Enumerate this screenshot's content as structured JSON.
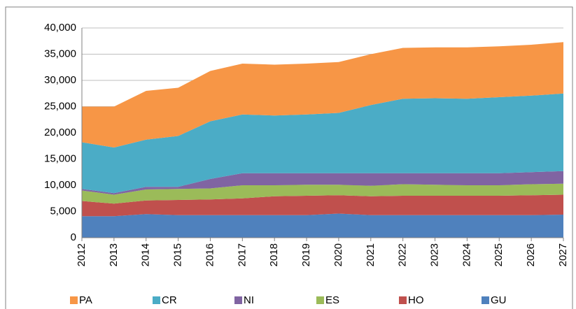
{
  "chart_data": {
    "type": "stacked-area",
    "categories": [
      "2012",
      "2013",
      "2014",
      "2015",
      "2016",
      "2017",
      "2018",
      "2019",
      "2020",
      "2021",
      "2022",
      "2023",
      "2024",
      "2025",
      "2026",
      "2027"
    ],
    "series": [
      {
        "name": "GU",
        "color": "#4f81bd",
        "values": [
          4100,
          4100,
          4500,
          4300,
          4300,
          4300,
          4300,
          4300,
          4600,
          4300,
          4300,
          4300,
          4300,
          4300,
          4300,
          4400
        ]
      },
      {
        "name": "HO",
        "color": "#c0504d",
        "values": [
          2900,
          2400,
          2600,
          2900,
          3000,
          3200,
          3600,
          3700,
          3500,
          3600,
          3700,
          3700,
          3700,
          3700,
          3800,
          3800
        ]
      },
      {
        "name": "ES",
        "color": "#9bbb59",
        "values": [
          2000,
          1700,
          2100,
          2100,
          2100,
          2500,
          2100,
          2100,
          2000,
          2000,
          2200,
          2100,
          2000,
          2000,
          2100,
          2100
        ]
      },
      {
        "name": "NI",
        "color": "#8064a2",
        "values": [
          300,
          300,
          500,
          400,
          1800,
          2300,
          2300,
          2200,
          2200,
          2400,
          2100,
          2200,
          2300,
          2300,
          2300,
          2400
        ]
      },
      {
        "name": "CR",
        "color": "#4bacc6",
        "values": [
          8900,
          8700,
          9000,
          9700,
          11000,
          11200,
          11000,
          11200,
          11500,
          13000,
          14200,
          14300,
          14200,
          14500,
          14600,
          14800
        ]
      },
      {
        "name": "PA",
        "color": "#f79646",
        "values": [
          6800,
          7800,
          9300,
          9200,
          9600,
          9700,
          9700,
          9700,
          9700,
          9700,
          9700,
          9700,
          9800,
          9700,
          9700,
          9800
        ]
      }
    ],
    "legend_order": [
      "PA",
      "CR",
      "NI",
      "ES",
      "HO",
      "GU"
    ],
    "ylim": [
      0,
      40000
    ],
    "yticks": [
      0,
      {
        "value": 5000,
        "label": "5,000"
      },
      {
        "value": 10000,
        "label": "10,000"
      },
      {
        "value": 15000,
        "label": "15,000"
      },
      {
        "value": 20000,
        "label": "20,000"
      },
      {
        "value": 25000,
        "label": "25,000"
      },
      {
        "value": 30000,
        "label": "30,000"
      },
      {
        "value": 35000,
        "label": "35,000"
      },
      {
        "value": 40000,
        "label": "40,000"
      }
    ],
    "grid": true
  }
}
